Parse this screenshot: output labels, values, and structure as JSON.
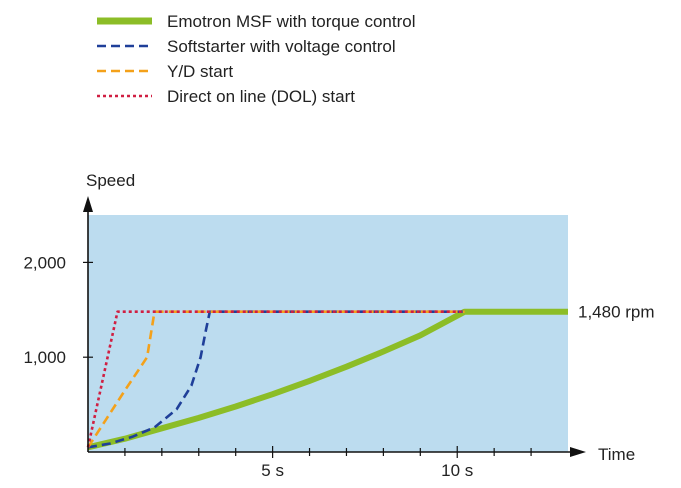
{
  "chart_data": {
    "type": "line",
    "ylabel": "Speed",
    "xlabel": "Time",
    "x_ticks": [
      {
        "value": 5,
        "label": "5 s"
      },
      {
        "value": 10,
        "label": "10 s"
      }
    ],
    "y_ticks": [
      {
        "value": 1000,
        "label": "1,000"
      },
      {
        "value": 2000,
        "label": "2,000"
      }
    ],
    "xlim": [
      0,
      13
    ],
    "ylim": [
      0,
      2500
    ],
    "background_color": "#bcdcef",
    "grid": false,
    "legend_position": "top",
    "annotation": {
      "text": "1,480 rpm",
      "value": 1480
    },
    "series": [
      {
        "name": "Emotron MSF with torque control",
        "color": "#8cbd27",
        "dash": "solid",
        "points": [
          [
            0,
            50
          ],
          [
            1,
            140
          ],
          [
            2,
            250
          ],
          [
            3,
            360
          ],
          [
            4,
            480
          ],
          [
            5,
            610
          ],
          [
            6,
            750
          ],
          [
            7,
            900
          ],
          [
            8,
            1060
          ],
          [
            9,
            1230
          ],
          [
            10.2,
            1480
          ],
          [
            13,
            1480
          ]
        ]
      },
      {
        "name": "Softstarter with voltage control",
        "color": "#1f3f99",
        "dash": "dashed",
        "points": [
          [
            0,
            50
          ],
          [
            0.6,
            90
          ],
          [
            1.2,
            160
          ],
          [
            1.8,
            260
          ],
          [
            2.4,
            450
          ],
          [
            2.8,
            700
          ],
          [
            3.05,
            1000
          ],
          [
            3.2,
            1300
          ],
          [
            3.3,
            1480
          ],
          [
            10.2,
            1480
          ]
        ]
      },
      {
        "name": "Y/D start",
        "color": "#f4a11a",
        "dash": "dashed",
        "points": [
          [
            0,
            50
          ],
          [
            0.5,
            350
          ],
          [
            1,
            650
          ],
          [
            1.6,
            1000
          ],
          [
            1.8,
            1480
          ],
          [
            10.2,
            1480
          ]
        ]
      },
      {
        "name": "Direct on line (DOL) start",
        "color": "#d01f42",
        "dash": "dotted",
        "points": [
          [
            0,
            50
          ],
          [
            0.8,
            1480
          ],
          [
            10.2,
            1480
          ]
        ]
      }
    ]
  }
}
